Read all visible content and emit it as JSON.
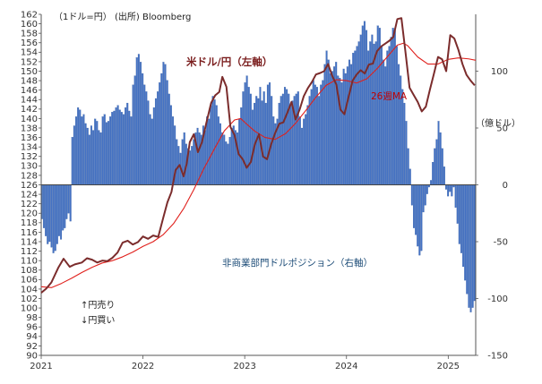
{
  "chart_data": {
    "type": "bar+line",
    "source_note": "(出所) Bloomberg",
    "left_unit": "（1ドル=円）",
    "right_unit": "（億ドル）",
    "series_labels": {
      "usdjpy": "米ドル/円（左軸）",
      "ma26": "26週MA",
      "position": "非商業部門ドルポジション（右軸）"
    },
    "legend_notes": [
      "↑円売り",
      "↓円買い"
    ],
    "x_tick_labels": [
      "2021",
      "2022",
      "2023",
      "2024",
      "2025"
    ],
    "x_range": [
      2021.0,
      2025.27
    ],
    "left_axis": {
      "min": 90,
      "max": 162,
      "step": 2
    },
    "right_axis": {
      "min": -150,
      "max": 150,
      "ticks": [
        -150,
        -100,
        -50,
        0,
        50,
        100
      ]
    },
    "colors": {
      "usdjpy": "#7b2c2c",
      "ma26": "#e0201c",
      "bars": "#4472c4",
      "bar_edge": "#2f5597"
    },
    "usdjpy": [
      [
        2021.0,
        103.2
      ],
      [
        2021.05,
        104.1
      ],
      [
        2021.1,
        105.4
      ],
      [
        2021.17,
        108.6
      ],
      [
        2021.22,
        110.4
      ],
      [
        2021.28,
        108.7
      ],
      [
        2021.33,
        109.2
      ],
      [
        2021.4,
        109.6
      ],
      [
        2021.45,
        110.5
      ],
      [
        2021.5,
        110.2
      ],
      [
        2021.55,
        109.6
      ],
      [
        2021.6,
        110.0
      ],
      [
        2021.65,
        109.9
      ],
      [
        2021.7,
        110.6
      ],
      [
        2021.75,
        111.7
      ],
      [
        2021.8,
        113.8
      ],
      [
        2021.85,
        114.2
      ],
      [
        2021.9,
        113.4
      ],
      [
        2021.95,
        113.9
      ],
      [
        2022.0,
        115.1
      ],
      [
        2022.05,
        114.6
      ],
      [
        2022.1,
        115.3
      ],
      [
        2022.15,
        115.0
      ],
      [
        2022.2,
        119.1
      ],
      [
        2022.24,
        122.3
      ],
      [
        2022.28,
        124.5
      ],
      [
        2022.32,
        129.1
      ],
      [
        2022.36,
        130.2
      ],
      [
        2022.4,
        127.8
      ],
      [
        2022.43,
        130.5
      ],
      [
        2022.46,
        135.0
      ],
      [
        2022.5,
        136.7
      ],
      [
        2022.54,
        132.9
      ],
      [
        2022.58,
        135.0
      ],
      [
        2022.62,
        138.8
      ],
      [
        2022.67,
        143.3
      ],
      [
        2022.71,
        144.9
      ],
      [
        2022.75,
        145.6
      ],
      [
        2022.78,
        148.8
      ],
      [
        2022.82,
        146.7
      ],
      [
        2022.86,
        138.2
      ],
      [
        2022.9,
        136.5
      ],
      [
        2022.94,
        132.5
      ],
      [
        2022.98,
        131.4
      ],
      [
        2023.02,
        129.6
      ],
      [
        2023.06,
        130.8
      ],
      [
        2023.1,
        134.6
      ],
      [
        2023.14,
        136.7
      ],
      [
        2023.18,
        132.0
      ],
      [
        2023.22,
        131.4
      ],
      [
        2023.26,
        134.6
      ],
      [
        2023.3,
        137.0
      ],
      [
        2023.34,
        138.9
      ],
      [
        2023.38,
        139.2
      ],
      [
        2023.42,
        141.3
      ],
      [
        2023.46,
        143.5
      ],
      [
        2023.5,
        139.8
      ],
      [
        2023.54,
        141.9
      ],
      [
        2023.58,
        144.7
      ],
      [
        2023.62,
        146.4
      ],
      [
        2023.66,
        147.7
      ],
      [
        2023.7,
        149.3
      ],
      [
        2023.74,
        149.6
      ],
      [
        2023.78,
        150.0
      ],
      [
        2023.82,
        151.5
      ],
      [
        2023.86,
        149.0
      ],
      [
        2023.9,
        147.2
      ],
      [
        2023.94,
        141.9
      ],
      [
        2023.98,
        140.9
      ],
      [
        2024.02,
        144.5
      ],
      [
        2024.06,
        148.0
      ],
      [
        2024.1,
        149.3
      ],
      [
        2024.14,
        150.2
      ],
      [
        2024.18,
        149.5
      ],
      [
        2024.22,
        151.4
      ],
      [
        2024.26,
        151.6
      ],
      [
        2024.3,
        154.2
      ],
      [
        2024.34,
        155.2
      ],
      [
        2024.38,
        155.8
      ],
      [
        2024.42,
        156.4
      ],
      [
        2024.46,
        157.2
      ],
      [
        2024.5,
        161.0
      ],
      [
        2024.54,
        161.2
      ],
      [
        2024.58,
        154.0
      ],
      [
        2024.62,
        146.5
      ],
      [
        2024.66,
        145.0
      ],
      [
        2024.7,
        143.5
      ],
      [
        2024.74,
        141.5
      ],
      [
        2024.78,
        142.5
      ],
      [
        2024.82,
        146.1
      ],
      [
        2024.86,
        149.5
      ],
      [
        2024.9,
        153.0
      ],
      [
        2024.94,
        152.5
      ],
      [
        2024.98,
        150.0
      ],
      [
        2025.02,
        157.6
      ],
      [
        2025.06,
        156.9
      ],
      [
        2025.1,
        154.5
      ],
      [
        2025.14,
        151.5
      ],
      [
        2025.18,
        149.2
      ],
      [
        2025.22,
        148.0
      ],
      [
        2025.26,
        147.0
      ]
    ],
    "ma26": [
      [
        2021.0,
        104.5
      ],
      [
        2021.1,
        104.3
      ],
      [
        2021.2,
        105.2
      ],
      [
        2021.3,
        106.3
      ],
      [
        2021.4,
        107.5
      ],
      [
        2021.5,
        108.6
      ],
      [
        2021.6,
        109.5
      ],
      [
        2021.7,
        110.0
      ],
      [
        2021.8,
        110.8
      ],
      [
        2021.9,
        111.8
      ],
      [
        2022.0,
        113.0
      ],
      [
        2022.1,
        114.0
      ],
      [
        2022.2,
        115.5
      ],
      [
        2022.3,
        117.8
      ],
      [
        2022.4,
        121.0
      ],
      [
        2022.5,
        125.0
      ],
      [
        2022.6,
        129.5
      ],
      [
        2022.7,
        133.5
      ],
      [
        2022.8,
        137.4
      ],
      [
        2022.9,
        139.7
      ],
      [
        2022.96,
        140.0
      ],
      [
        2023.0,
        139.2
      ],
      [
        2023.1,
        137.3
      ],
      [
        2023.2,
        136.0
      ],
      [
        2023.3,
        135.6
      ],
      [
        2023.4,
        136.8
      ],
      [
        2023.5,
        139.0
      ],
      [
        2023.6,
        141.7
      ],
      [
        2023.7,
        144.5
      ],
      [
        2023.8,
        147.0
      ],
      [
        2023.9,
        148.2
      ],
      [
        2024.0,
        148.0
      ],
      [
        2024.1,
        147.5
      ],
      [
        2024.2,
        148.4
      ],
      [
        2024.3,
        150.5
      ],
      [
        2024.4,
        153.0
      ],
      [
        2024.5,
        155.5
      ],
      [
        2024.56,
        155.9
      ],
      [
        2024.6,
        155.4
      ],
      [
        2024.7,
        153.0
      ],
      [
        2024.8,
        151.5
      ],
      [
        2024.9,
        151.5
      ],
      [
        2025.0,
        152.5
      ],
      [
        2025.1,
        152.8
      ],
      [
        2025.2,
        152.6
      ],
      [
        2025.27,
        152.3
      ]
    ],
    "position": [
      -30,
      -38,
      -45,
      -52,
      -50,
      -55,
      -60,
      -58,
      -52,
      -45,
      -48,
      -40,
      -38,
      -30,
      -25,
      -32,
      42,
      52,
      60,
      68,
      66,
      60,
      62,
      54,
      50,
      44,
      52,
      48,
      58,
      56,
      48,
      46,
      60,
      62,
      55,
      56,
      60,
      64,
      65,
      68,
      70,
      66,
      64,
      62,
      68,
      72,
      65,
      60,
      88,
      96,
      112,
      115,
      108,
      98,
      88,
      82,
      74,
      62,
      58,
      68,
      76,
      82,
      90,
      98,
      108,
      106,
      92,
      80,
      70,
      60,
      52,
      40,
      34,
      28,
      40,
      46,
      36,
      32,
      30,
      34,
      40,
      46,
      50,
      46,
      44,
      52,
      48,
      60,
      58,
      70,
      78,
      75,
      70,
      60,
      54,
      46,
      44,
      38,
      36,
      42,
      50,
      52,
      48,
      46,
      58,
      68,
      82,
      90,
      96,
      86,
      80,
      66,
      72,
      78,
      76,
      86,
      74,
      82,
      72,
      88,
      90,
      78,
      60,
      54,
      58,
      72,
      78,
      80,
      86,
      84,
      80,
      70,
      74,
      78,
      80,
      82,
      60,
      50,
      58,
      62,
      70,
      78,
      84,
      92,
      88,
      86,
      78,
      88,
      92,
      106,
      118,
      110,
      98,
      100,
      104,
      108,
      96,
      94,
      90,
      102,
      98,
      104,
      110,
      106,
      116,
      118,
      122,
      126,
      132,
      140,
      144,
      136,
      118,
      126,
      132,
      124,
      126,
      140,
      138,
      122,
      110,
      104,
      118,
      122,
      130,
      138,
      136,
      122,
      106,
      96,
      84,
      72,
      56,
      32,
      14,
      -18,
      -38,
      -44,
      -54,
      -62,
      -58,
      -24,
      -18,
      -8,
      -2,
      4,
      20,
      32,
      40,
      56,
      46,
      32,
      16,
      -4,
      -10,
      -6,
      -10,
      -2,
      -20,
      -34,
      -52,
      -60,
      -72,
      -84,
      -96,
      -108,
      -112,
      -108,
      -102
    ]
  }
}
